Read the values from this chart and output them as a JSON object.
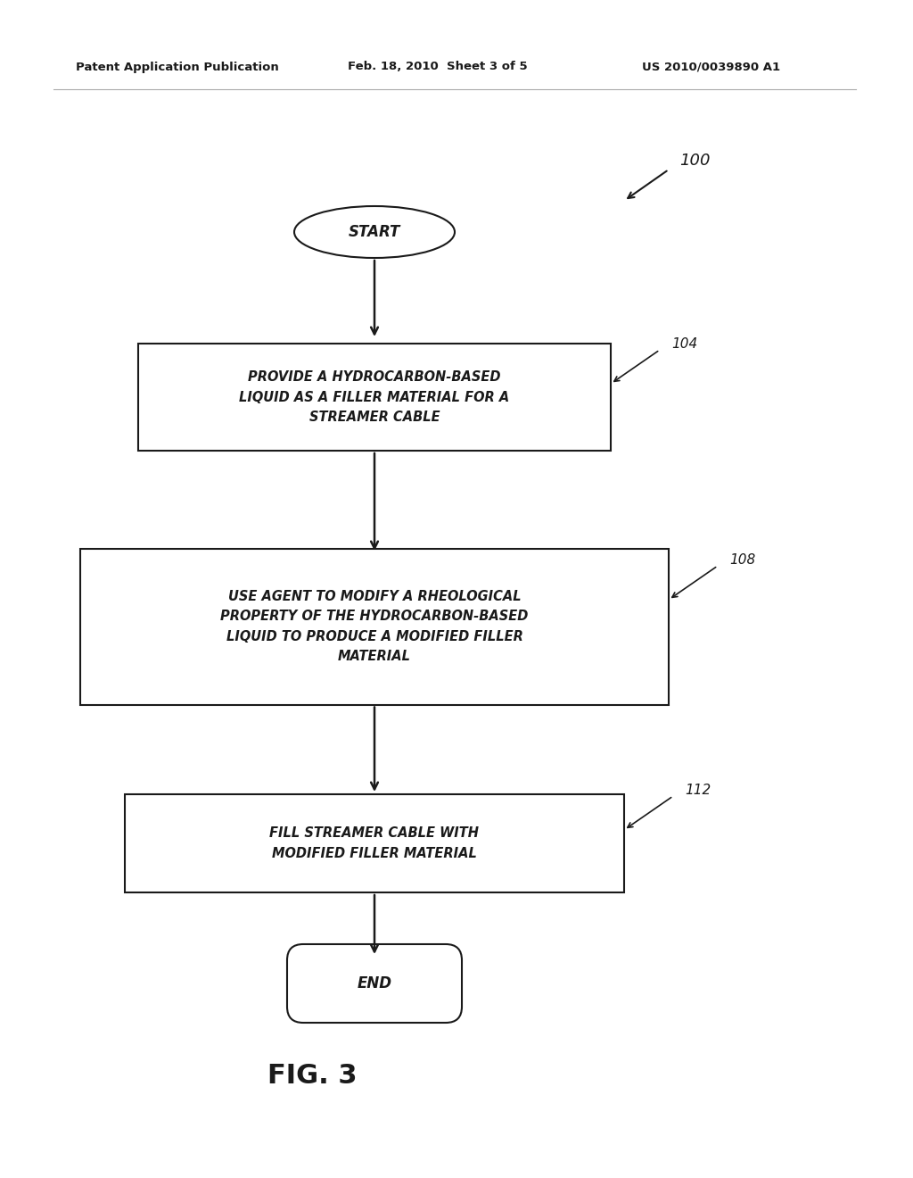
{
  "bg_color": "#ffffff",
  "header_left": "Patent Application Publication",
  "header_center": "Feb. 18, 2010  Sheet 3 of 5",
  "header_right": "US 2010/0039890 A1",
  "figure_label": "FIG. 3",
  "diagram_label": "100",
  "start_label": "START",
  "end_label": "END",
  "box1_text": "PROVIDE A HYDROCARBON-BASED\nLIQUID AS A FILLER MATERIAL FOR A\nSTREAMER CABLE",
  "box1_label": "104",
  "box2_text": "USE AGENT TO MODIFY A RHEOLOGICAL\nPROPERTY OF THE HYDROCARBON-BASED\nLIQUID TO PRODUCE A MODIFIED FILLER\nMATERIAL",
  "box2_label": "108",
  "box3_text": "FILL STREAMER CABLE WITH\nMODIFIED FILLER MATERIAL",
  "box3_label": "112",
  "text_color": "#1a1a1a",
  "box_edge_color": "#1a1a1a",
  "arrow_color": "#1a1a1a",
  "font_size_header": 9.5,
  "font_size_box": 10.5,
  "font_size_label": 11,
  "font_size_figure": 22,
  "font_size_terminal": 12
}
